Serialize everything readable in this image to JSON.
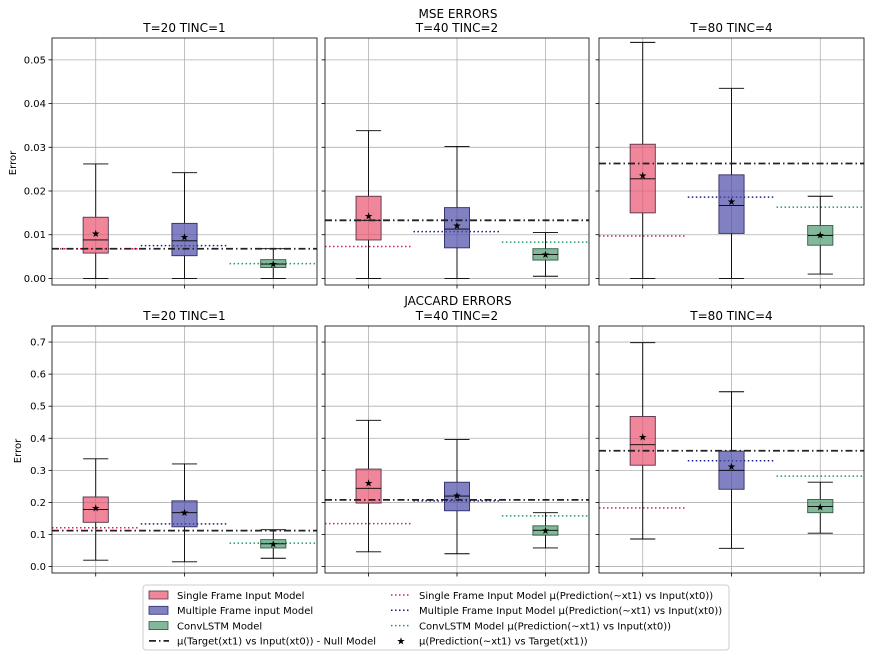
{
  "figure": {
    "rows": [
      {
        "suptitle_line1": "MSE ERRORS",
        "ylabel": "Error"
      },
      {
        "suptitle_line1": "JACCARD ERRORS",
        "ylabel": "Error"
      }
    ]
  },
  "legend": {
    "items": [
      {
        "label": "Single Frame Input Model",
        "kind": "patch",
        "color": "#e8536f"
      },
      {
        "label": "Multiple Frame input Model",
        "kind": "patch",
        "color": "#4b4aa8"
      },
      {
        "label": "ConvLSTM Model",
        "kind": "patch",
        "color": "#4e9a70"
      },
      {
        "label": "μ(Target(xt1) vs Input(xt0)) - Null Model",
        "kind": "dashdot",
        "color": "#222222"
      },
      {
        "label": "Single Frame Input Model μ(Prediction(~xt1) vs Input(xt0))",
        "kind": "dotted",
        "color": "#e8184f"
      },
      {
        "label": "Multiple Frame Input Model μ(Prediction(~xt1) vs Input(xt0))",
        "kind": "dotted",
        "color": "#1a1a8c"
      },
      {
        "label": "ConvLSTM Model μ(Prediction(~xt1) vs Input(xt0))",
        "kind": "dotted",
        "color": "#1f9a60"
      },
      {
        "label": "μ(Prediction(~xt1) vs Target(xt1))",
        "kind": "star",
        "color": "#000000"
      }
    ]
  },
  "chart_data": [
    {
      "type": "box",
      "title": "T=20 TINC=1",
      "ylabel": "Error",
      "ylim": [
        -0.0015,
        0.055
      ],
      "yticks": [
        0.0,
        0.01,
        0.02,
        0.03,
        0.04,
        0.05
      ],
      "ytick_labels": [
        "0.00",
        "0.01",
        "0.02",
        "0.03",
        "0.04",
        "0.05"
      ],
      "grid": true,
      "null_model": 0.0068,
      "boxes": [
        {
          "name": "Single Frame Input Model",
          "whislo": 0.0,
          "q1": 0.0058,
          "med": 0.0088,
          "q3": 0.014,
          "whishi": 0.0262,
          "mean": 0.0103,
          "pred_vs_input": 0.0068
        },
        {
          "name": "Multiple Frame input Model",
          "whislo": 0.0,
          "q1": 0.0052,
          "med": 0.0086,
          "q3": 0.0126,
          "whishi": 0.0242,
          "mean": 0.0095,
          "pred_vs_input": 0.0075
        },
        {
          "name": "ConvLSTM Model",
          "whislo": 0.0,
          "q1": 0.0025,
          "med": 0.0033,
          "q3": 0.0043,
          "whishi": 0.0068,
          "mean": 0.0034,
          "pred_vs_input": 0.0034
        }
      ]
    },
    {
      "type": "box",
      "title": "T=40 TINC=2",
      "ylabel": "",
      "ylim": [
        -0.0015,
        0.055
      ],
      "yticks": [
        0.0,
        0.01,
        0.02,
        0.03,
        0.04,
        0.05
      ],
      "ytick_labels": [],
      "grid": true,
      "null_model": 0.0133,
      "boxes": [
        {
          "name": "Single Frame Input Model",
          "whislo": 0.0,
          "q1": 0.0088,
          "med": 0.0133,
          "q3": 0.0188,
          "whishi": 0.0338,
          "mean": 0.0143,
          "pred_vs_input": 0.0073
        },
        {
          "name": "Multiple Frame input Model",
          "whislo": 0.0,
          "q1": 0.007,
          "med": 0.0113,
          "q3": 0.0162,
          "whishi": 0.0302,
          "mean": 0.0122,
          "pred_vs_input": 0.0107
        },
        {
          "name": "ConvLSTM Model",
          "whislo": 0.0005,
          "q1": 0.0042,
          "med": 0.0055,
          "q3": 0.0068,
          "whishi": 0.0105,
          "mean": 0.0056,
          "pred_vs_input": 0.0083
        }
      ]
    },
    {
      "type": "box",
      "title": "T=80 TINC=4",
      "ylabel": "",
      "ylim": [
        -0.0015,
        0.055
      ],
      "yticks": [
        0.0,
        0.01,
        0.02,
        0.03,
        0.04,
        0.05
      ],
      "ytick_labels": [],
      "grid": true,
      "null_model": 0.0263,
      "boxes": [
        {
          "name": "Single Frame Input Model",
          "whislo": 0.0,
          "q1": 0.015,
          "med": 0.0228,
          "q3": 0.0307,
          "whishi": 0.054,
          "mean": 0.0236,
          "pred_vs_input": 0.0097
        },
        {
          "name": "Multiple Frame input Model",
          "whislo": 0.0,
          "q1": 0.0103,
          "med": 0.0167,
          "q3": 0.0237,
          "whishi": 0.0435,
          "mean": 0.0177,
          "pred_vs_input": 0.0186
        },
        {
          "name": "ConvLSTM Model",
          "whislo": 0.001,
          "q1": 0.0076,
          "med": 0.0098,
          "q3": 0.0121,
          "whishi": 0.0188,
          "mean": 0.01,
          "pred_vs_input": 0.0163
        }
      ]
    },
    {
      "type": "box",
      "title": "T=20 TINC=1",
      "ylabel": "Error",
      "ylim": [
        -0.02,
        0.75
      ],
      "yticks": [
        0.0,
        0.1,
        0.2,
        0.3,
        0.4,
        0.5,
        0.6,
        0.7
      ],
      "ytick_labels": [
        "0.0",
        "0.1",
        "0.2",
        "0.3",
        "0.4",
        "0.5",
        "0.6",
        "0.7"
      ],
      "grid": true,
      "null_model": 0.112,
      "boxes": [
        {
          "name": "Single Frame Input Model",
          "whislo": 0.02,
          "q1": 0.138,
          "med": 0.178,
          "q3": 0.217,
          "whishi": 0.336,
          "mean": 0.183,
          "pred_vs_input": 0.121
        },
        {
          "name": "Multiple Frame input Model",
          "whislo": 0.015,
          "q1": 0.124,
          "med": 0.168,
          "q3": 0.205,
          "whishi": 0.32,
          "mean": 0.17,
          "pred_vs_input": 0.133
        },
        {
          "name": "ConvLSTM Model",
          "whislo": 0.026,
          "q1": 0.058,
          "med": 0.071,
          "q3": 0.084,
          "whishi": 0.115,
          "mean": 0.071,
          "pred_vs_input": 0.073
        }
      ]
    },
    {
      "type": "box",
      "title": "T=40 TINC=2",
      "ylabel": "",
      "ylim": [
        -0.02,
        0.75
      ],
      "yticks": [
        0.0,
        0.1,
        0.2,
        0.3,
        0.4,
        0.5,
        0.6,
        0.7
      ],
      "ytick_labels": [],
      "grid": true,
      "null_model": 0.208,
      "boxes": [
        {
          "name": "Single Frame Input Model",
          "whislo": 0.046,
          "q1": 0.198,
          "med": 0.244,
          "q3": 0.304,
          "whishi": 0.456,
          "mean": 0.261,
          "pred_vs_input": 0.134
        },
        {
          "name": "Multiple Frame input Model",
          "whislo": 0.04,
          "q1": 0.174,
          "med": 0.22,
          "q3": 0.263,
          "whishi": 0.396,
          "mean": 0.223,
          "pred_vs_input": 0.205
        },
        {
          "name": "ConvLSTM Model",
          "whislo": 0.058,
          "q1": 0.098,
          "med": 0.113,
          "q3": 0.127,
          "whishi": 0.168,
          "mean": 0.114,
          "pred_vs_input": 0.158
        }
      ]
    },
    {
      "type": "box",
      "title": "T=80 TINC=4",
      "ylabel": "",
      "ylim": [
        -0.02,
        0.75
      ],
      "yticks": [
        0.0,
        0.1,
        0.2,
        0.3,
        0.4,
        0.5,
        0.6,
        0.7
      ],
      "ytick_labels": [],
      "grid": true,
      "null_model": 0.361,
      "boxes": [
        {
          "name": "Single Frame Input Model",
          "whislo": 0.086,
          "q1": 0.316,
          "med": 0.38,
          "q3": 0.468,
          "whishi": 0.698,
          "mean": 0.405,
          "pred_vs_input": 0.183
        },
        {
          "name": "Multiple Frame input Model",
          "whislo": 0.057,
          "q1": 0.241,
          "med": 0.3,
          "q3": 0.36,
          "whishi": 0.545,
          "mean": 0.313,
          "pred_vs_input": 0.33
        },
        {
          "name": "ConvLSTM Model",
          "whislo": 0.104,
          "q1": 0.168,
          "med": 0.187,
          "q3": 0.209,
          "whishi": 0.263,
          "mean": 0.187,
          "pred_vs_input": 0.282
        }
      ]
    }
  ]
}
